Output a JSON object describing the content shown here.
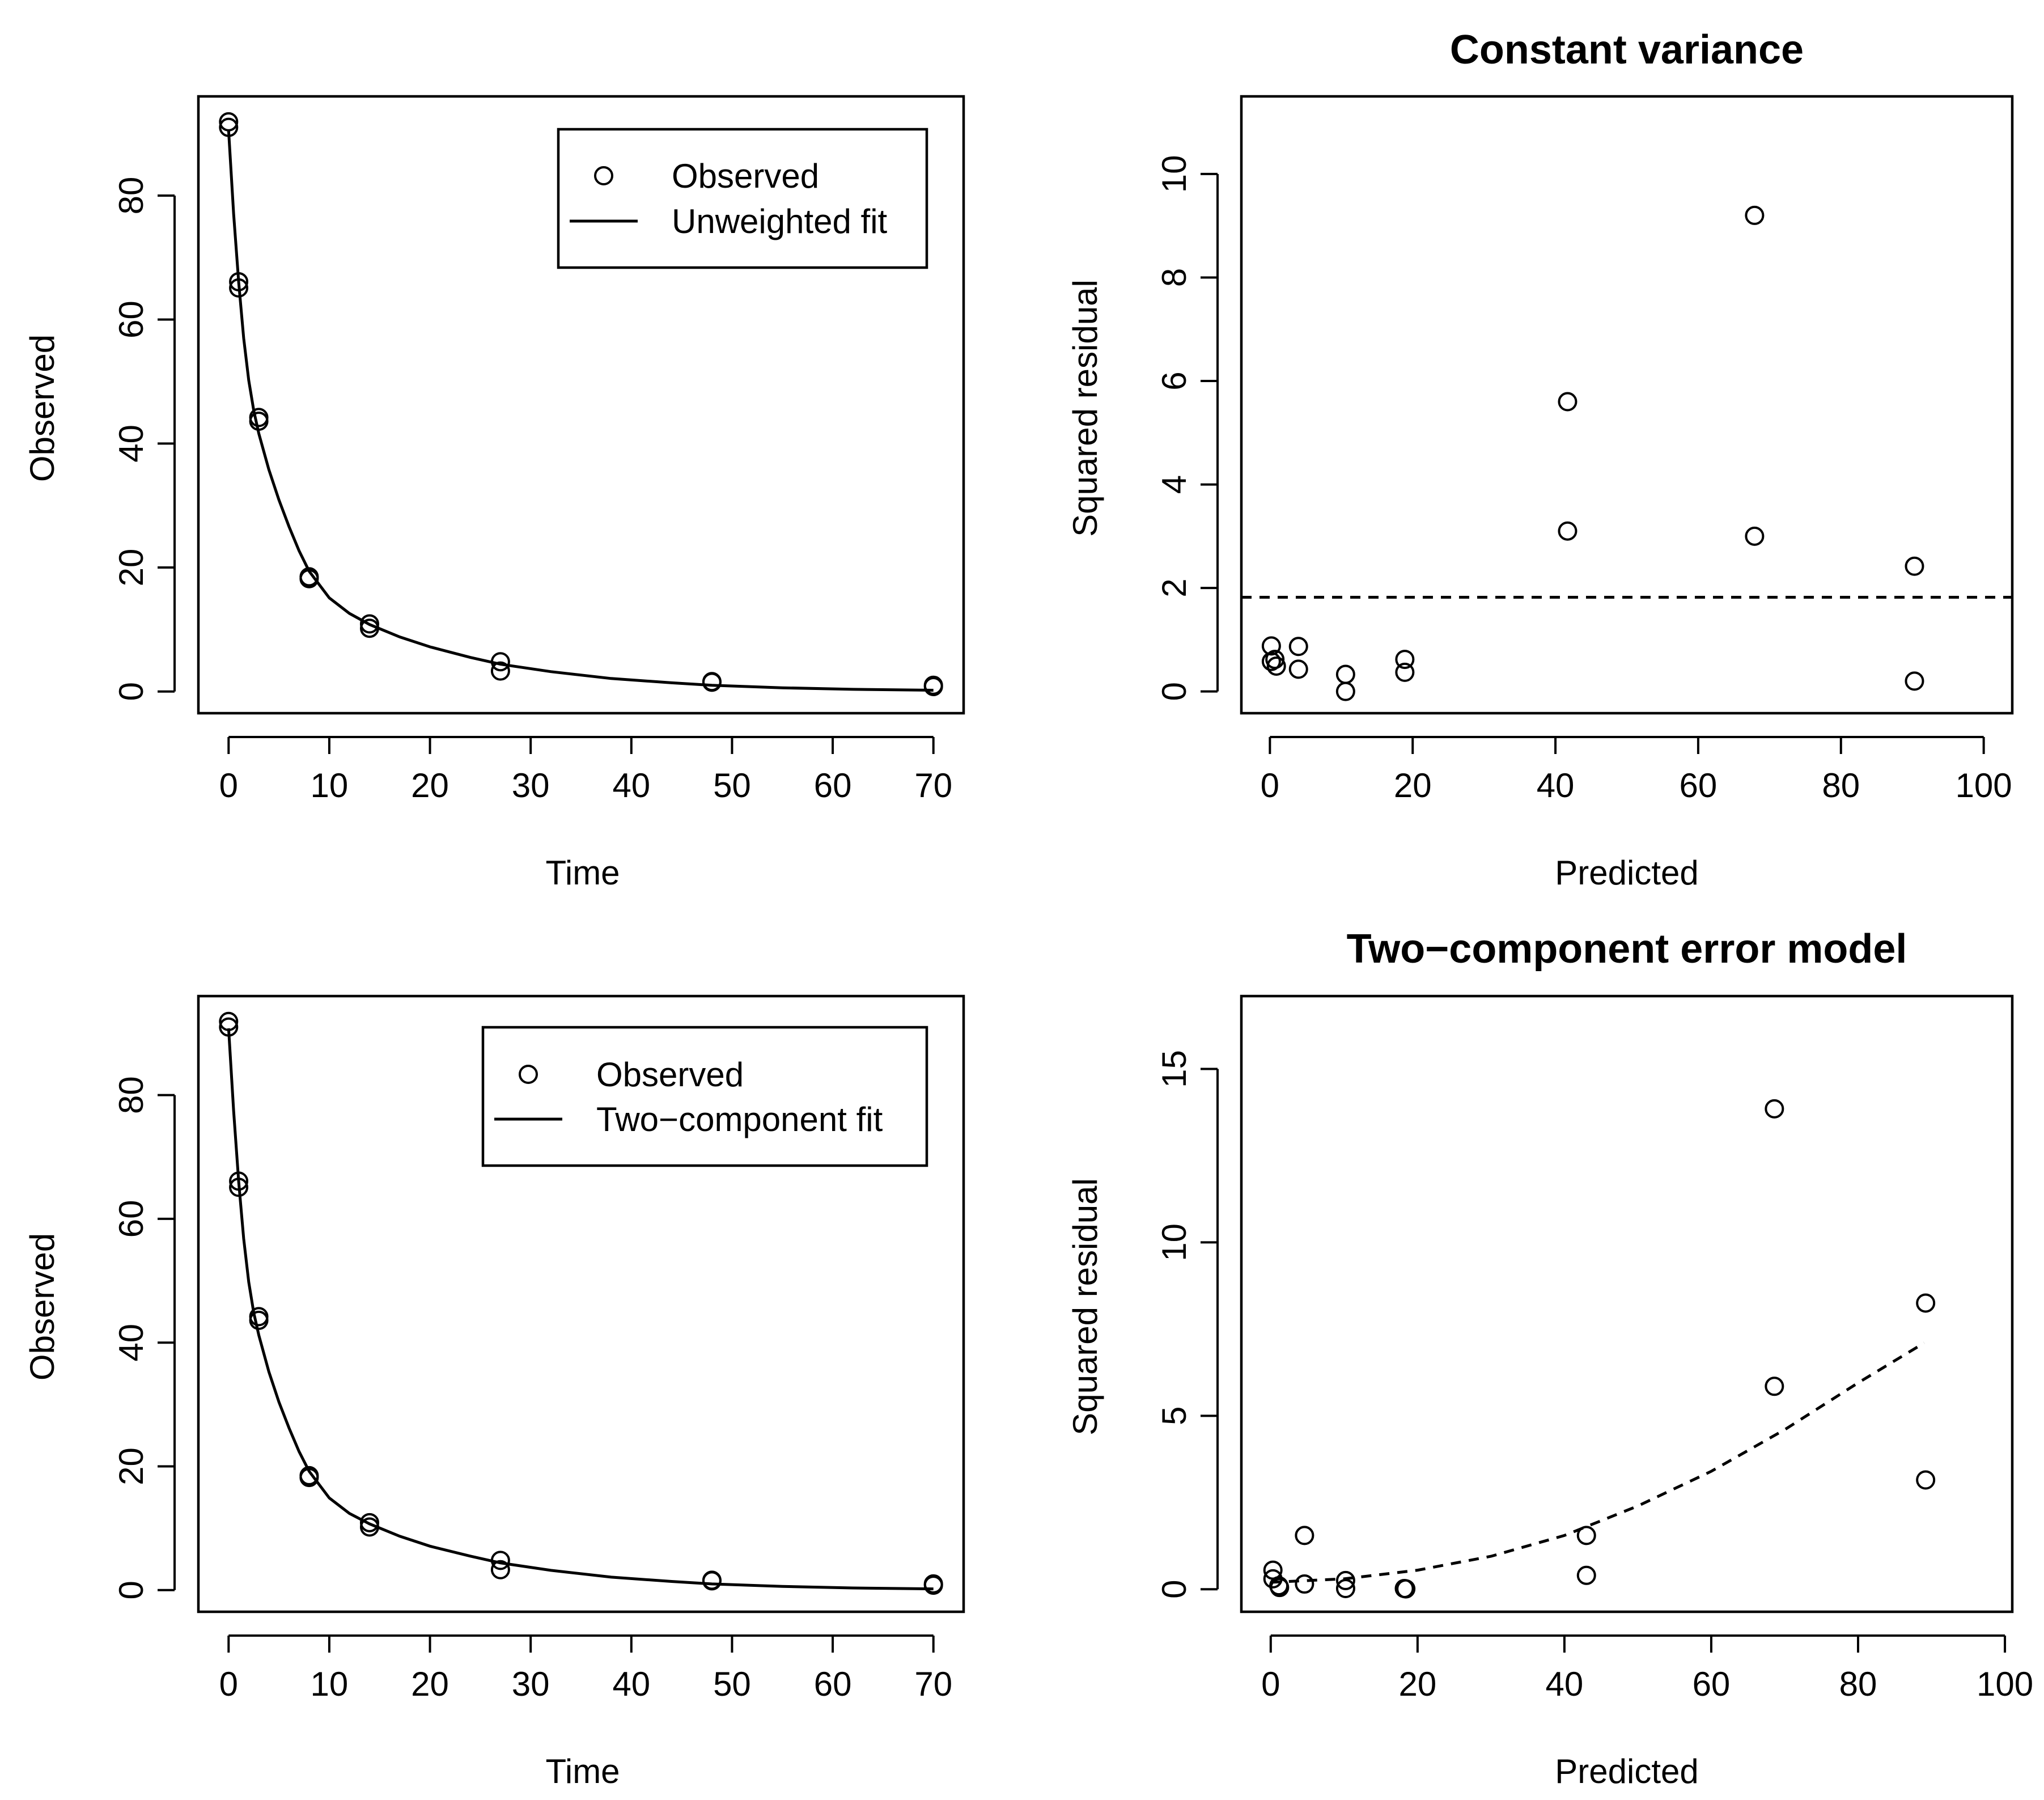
{
  "chart_data": [
    {
      "type": "scatter",
      "id": "p1",
      "title": "",
      "xlabel": "Time",
      "ylabel": "Observed",
      "xlim": [
        -3,
        73
      ],
      "ylim": [
        -3.5,
        96
      ],
      "xticks": [
        0,
        10,
        20,
        30,
        40,
        50,
        60,
        70
      ],
      "yticks": [
        0,
        20,
        40,
        60,
        80
      ],
      "points": [
        [
          0,
          91.9
        ],
        [
          0,
          91.0
        ],
        [
          1,
          66.1
        ],
        [
          1,
          65.1
        ],
        [
          3,
          44.2
        ],
        [
          3,
          43.6
        ],
        [
          8,
          18.5
        ],
        [
          8,
          18.2
        ],
        [
          14,
          10.9
        ],
        [
          14,
          10.2
        ],
        [
          27,
          4.8
        ],
        [
          27,
          3.3
        ],
        [
          48,
          1.6
        ],
        [
          48,
          1.5
        ],
        [
          70,
          1.0
        ],
        [
          70,
          0.8
        ]
      ],
      "fit": {
        "name": "Unweighted fit",
        "style": "solid",
        "x": [
          0,
          0.5,
          1,
          1.5,
          2,
          2.5,
          3,
          4,
          5,
          6,
          7,
          8,
          10,
          12,
          14,
          17,
          20,
          24,
          27,
          32,
          38,
          44,
          48,
          55,
          62,
          70
        ],
        "y": [
          90.5,
          77.0,
          66.0,
          57.0,
          50.2,
          45.3,
          41.6,
          35.8,
          30.9,
          26.6,
          22.7,
          19.4,
          15.1,
          12.6,
          10.8,
          8.8,
          7.2,
          5.5,
          4.4,
          3.2,
          2.1,
          1.4,
          1.0,
          0.6,
          0.35,
          0.2
        ]
      },
      "legend": {
        "position": "top-right",
        "entries": [
          {
            "label": "Observed",
            "marker": "circle"
          },
          {
            "label": "Unweighted fit",
            "marker": "line"
          }
        ]
      }
    },
    {
      "type": "scatter",
      "id": "p2",
      "title": "Constant variance",
      "xlabel": "Predicted",
      "ylabel": "Squared residual",
      "xlim": [
        -4,
        104
      ],
      "ylim": [
        -0.42,
        11.5
      ],
      "xticks": [
        0,
        20,
        40,
        60,
        80,
        100
      ],
      "yticks": [
        0,
        2,
        4,
        6,
        8,
        10
      ],
      "points": [
        [
          0.2,
          0.88
        ],
        [
          0.2,
          0.58
        ],
        [
          0.7,
          0.62
        ],
        [
          0.9,
          0.49
        ],
        [
          4,
          0.87
        ],
        [
          4,
          0.43
        ],
        [
          10.6,
          0.33
        ],
        [
          10.6,
          0.0
        ],
        [
          18.9,
          0.62
        ],
        [
          18.9,
          0.37
        ],
        [
          41.7,
          5.6
        ],
        [
          41.7,
          3.1
        ],
        [
          67.9,
          9.2
        ],
        [
          67.9,
          3.0
        ],
        [
          90.3,
          2.42
        ],
        [
          90.3,
          0.2
        ]
      ],
      "reference_line": {
        "style": "dashed",
        "x": [
          -4,
          104
        ],
        "y": [
          1.82,
          1.82
        ]
      }
    },
    {
      "type": "scatter",
      "id": "p3",
      "title": "",
      "xlabel": "Time",
      "ylabel": "Observed",
      "xlim": [
        -3,
        73
      ],
      "ylim": [
        -3.5,
        96
      ],
      "xticks": [
        0,
        10,
        20,
        30,
        40,
        50,
        60,
        70
      ],
      "yticks": [
        0,
        20,
        40,
        60,
        80
      ],
      "points": [
        [
          0,
          91.9
        ],
        [
          0,
          91.0
        ],
        [
          1,
          66.1
        ],
        [
          1,
          65.1
        ],
        [
          3,
          44.2
        ],
        [
          3,
          43.6
        ],
        [
          8,
          18.5
        ],
        [
          8,
          18.2
        ],
        [
          14,
          10.9
        ],
        [
          14,
          10.2
        ],
        [
          27,
          4.8
        ],
        [
          27,
          3.3
        ],
        [
          48,
          1.6
        ],
        [
          48,
          1.5
        ],
        [
          70,
          1.0
        ],
        [
          70,
          0.8
        ]
      ],
      "fit": {
        "name": "Two-component fit",
        "style": "solid",
        "x": [
          0,
          0.5,
          1,
          1.5,
          2,
          2.5,
          3,
          4,
          5,
          6,
          7,
          8,
          10,
          12,
          14,
          17,
          20,
          24,
          27,
          32,
          38,
          44,
          48,
          55,
          62,
          70
        ],
        "y": [
          90.8,
          77.4,
          66.0,
          56.8,
          49.8,
          44.8,
          41.2,
          35.3,
          30.4,
          26.2,
          22.4,
          19.2,
          14.9,
          12.4,
          10.7,
          8.7,
          7.1,
          5.5,
          4.4,
          3.2,
          2.1,
          1.4,
          1.0,
          0.6,
          0.35,
          0.2
        ]
      },
      "legend": {
        "position": "top-right",
        "entries": [
          {
            "label": "Observed",
            "marker": "circle"
          },
          {
            "label": "Two−component fit",
            "marker": "line"
          }
        ]
      }
    },
    {
      "type": "scatter",
      "id": "p4",
      "title": "Two−component error model",
      "xlabel": "Predicted",
      "ylabel": "Squared residual",
      "xlim": [
        -4,
        101
      ],
      "ylim": [
        -0.65,
        17.1
      ],
      "xticks": [
        0,
        20,
        40,
        60,
        80,
        100
      ],
      "yticks": [
        0,
        5,
        10,
        15
      ],
      "points": [
        [
          0.3,
          0.55
        ],
        [
          0.3,
          0.3
        ],
        [
          1.1,
          0.1
        ],
        [
          1.2,
          0.05
        ],
        [
          4.6,
          1.55
        ],
        [
          4.6,
          0.15
        ],
        [
          10.2,
          0.25
        ],
        [
          10.2,
          0.02
        ],
        [
          18.2,
          0.02
        ],
        [
          18.4,
          0.01
        ],
        [
          43.0,
          1.55
        ],
        [
          43.0,
          0.4
        ],
        [
          68.6,
          13.85
        ],
        [
          68.6,
          5.85
        ],
        [
          89.2,
          8.25
        ],
        [
          89.2,
          3.15
        ]
      ],
      "trend": {
        "style": "dashed",
        "x": [
          0,
          10,
          20,
          30,
          40,
          50,
          60,
          70,
          80,
          89
        ],
        "y": [
          0.2,
          0.3,
          0.55,
          0.95,
          1.55,
          2.4,
          3.4,
          4.6,
          5.95,
          7.1
        ]
      }
    }
  ]
}
